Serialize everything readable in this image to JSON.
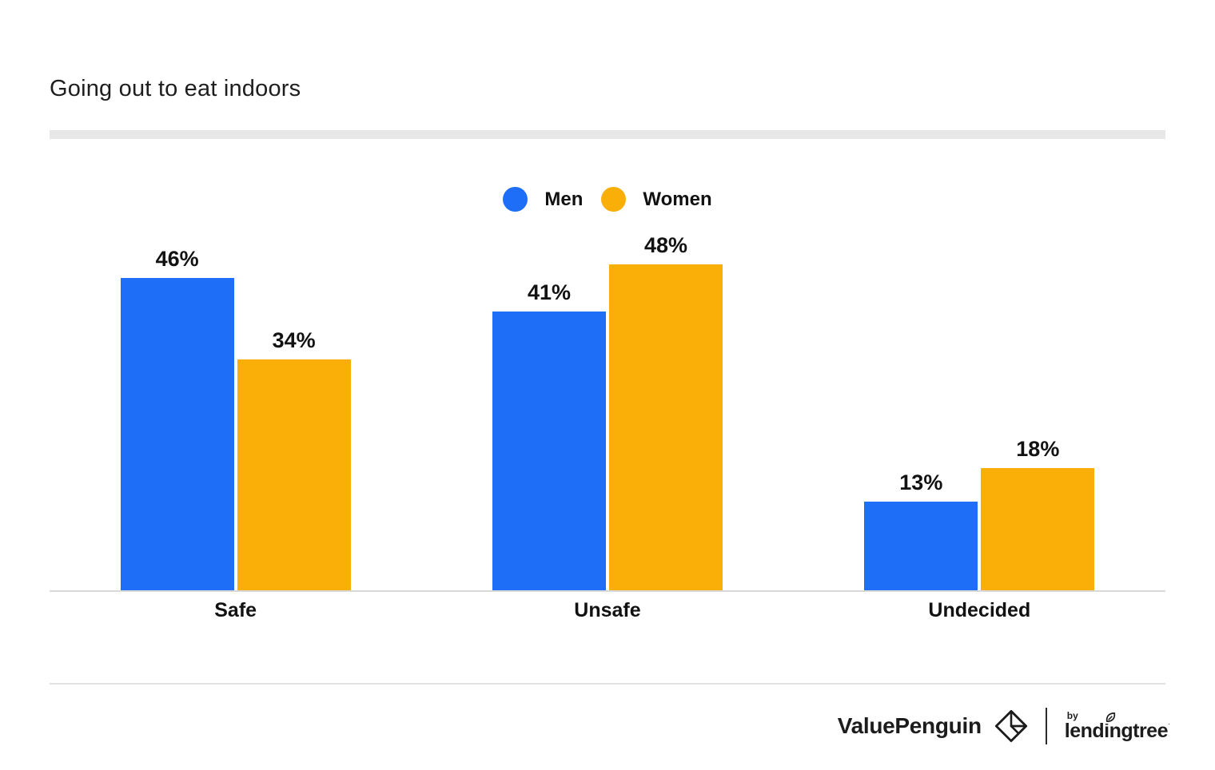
{
  "header": {
    "title": "Going out to eat indoors"
  },
  "chart_data": {
    "type": "bar",
    "title": "Going out to eat indoors",
    "categories": [
      "Safe",
      "Unsafe",
      "Undecided"
    ],
    "series": [
      {
        "name": "Men",
        "color": "#1F6EF7",
        "values": [
          46,
          41,
          13
        ],
        "labels": [
          "46%",
          "41%",
          "13%"
        ]
      },
      {
        "name": "Women",
        "color": "#FAAE08",
        "values": [
          34,
          48,
          18
        ],
        "labels": [
          "34%",
          "48%",
          "18%"
        ]
      }
    ],
    "ylim": [
      0,
      50
    ],
    "grid": false,
    "axis_labels_shown": false,
    "legend_position": "top-center",
    "value_label_format": "percent"
  },
  "colors": {
    "men": "#1F6EF7",
    "women": "#FAAE08",
    "divider_thick": "#e7e7e7",
    "divider_thin": "#e3e3e3",
    "baseline": "#d9d9d9"
  },
  "footer": {
    "brand": "ValuePenguin",
    "by_label": "by",
    "partner_brand": "lendingtree",
    "trademark_dot": "·"
  }
}
